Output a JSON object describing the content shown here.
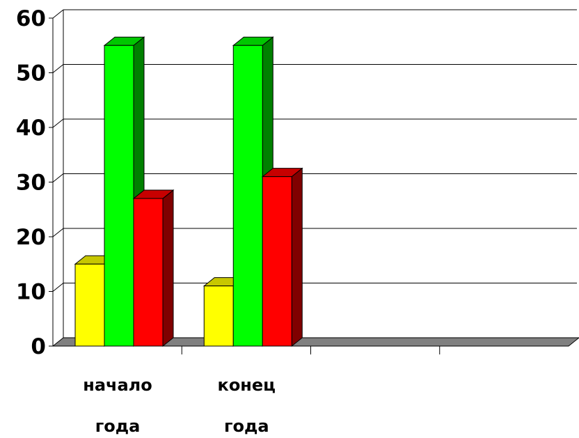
{
  "chart_data": {
    "type": "bar",
    "style": "3d-clustered-column",
    "categories": [
      [
        "начало",
        "года"
      ],
      [
        "конец",
        "года"
      ],
      [
        "",
        ""
      ],
      [
        "",
        ""
      ]
    ],
    "series": [
      {
        "color": "#ffff00",
        "values": [
          15,
          11,
          null,
          null
        ]
      },
      {
        "color": "#00ff00",
        "values": [
          55,
          55,
          null,
          null
        ]
      },
      {
        "color": "#ff0000",
        "values": [
          27,
          31,
          null,
          null
        ]
      }
    ],
    "yticks": [
      0,
      10,
      20,
      30,
      40,
      50,
      60
    ],
    "ylim": [
      0,
      60
    ],
    "grid": true,
    "legend": "none"
  }
}
